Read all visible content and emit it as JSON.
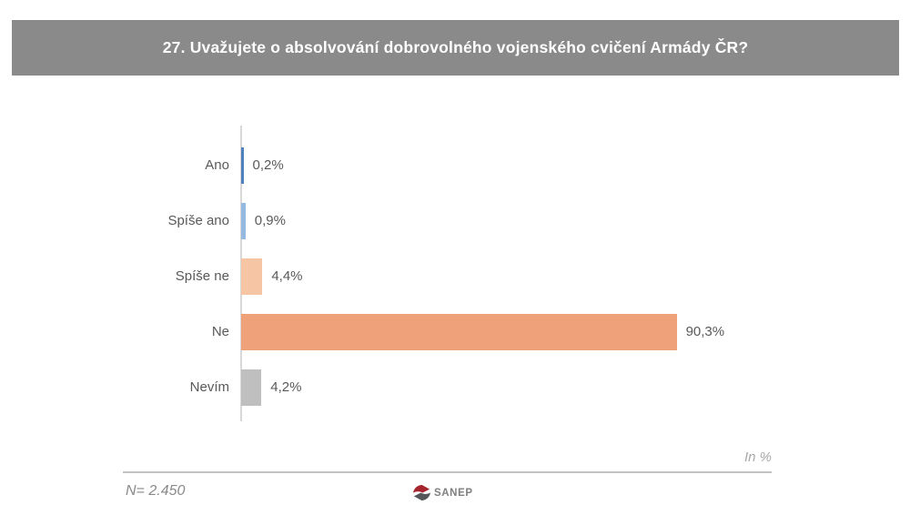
{
  "title": "27. Uvažujete o absolvování dobrovolného vojenského cvičení Armády ČR?",
  "chart_data": {
    "type": "bar",
    "orientation": "horizontal",
    "title": "27. Uvažujete o absolvování dobrovolného vojenského cvičení Armády ČR?",
    "categories": [
      "Ano",
      "Spíše ano",
      "Spíše ne",
      "Ne",
      "Nevím"
    ],
    "values": [
      0.2,
      0.9,
      4.4,
      90.3,
      4.2
    ],
    "value_labels": [
      "0,2%",
      "0,9%",
      "4,4%",
      "90,3%",
      "4,2%"
    ],
    "bar_colors": [
      "#4F81BD",
      "#95B9DF",
      "#F6C5A3",
      "#EFA179",
      "#BFBFBF"
    ],
    "xlabel": "",
    "ylabel": "",
    "xlim": [
      0,
      100
    ],
    "grid": false,
    "legend": false,
    "unit_note": "In %"
  },
  "footer": {
    "unit_note": "In %",
    "sample_size": "N= 2.450",
    "logo_text": "SANEP"
  },
  "colors": {
    "title_bar_bg": "#8A8A8A",
    "title_text": "#FFFFFF",
    "label_text": "#595959",
    "axis_line": "#D8D8D8",
    "footer_line": "#C2C2C2",
    "footer_text": "#8A8A8A",
    "unit_note_text": "#A8A8A8",
    "logo_red": "#A6242C",
    "logo_gray": "#55565A"
  }
}
